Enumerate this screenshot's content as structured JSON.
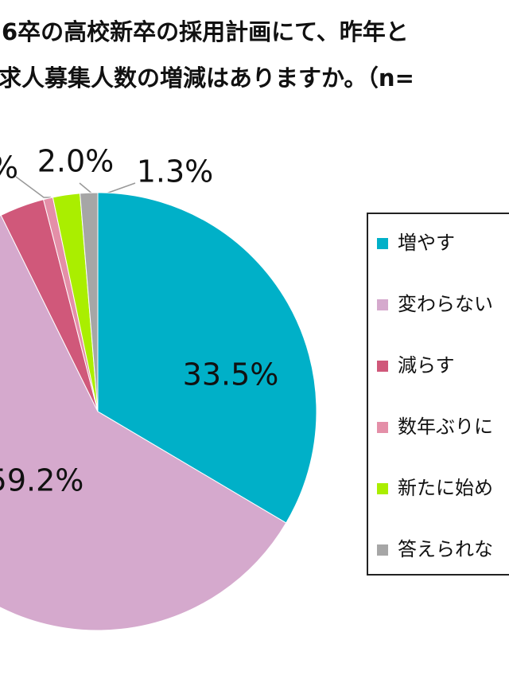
{
  "chart_data": {
    "type": "pie",
    "title_lines": [
      "6卒の高校新卒の採用計画にて、昨年と",
      "求人募集人数の増減はありますか。（n="
    ],
    "categories": [
      "増やす",
      "変わらない",
      "減らす",
      "数年ぶりに",
      "新たに始め",
      "答えられな"
    ],
    "values": [
      33.5,
      59.2,
      3.3,
      0.7,
      2.0,
      1.3
    ],
    "value_labels": [
      "33.5%",
      "59.2%",
      "%",
      null,
      "2.0%",
      "1.3%"
    ],
    "colors": [
      "#00b0c8",
      "#d5a9cd",
      "#d0587a",
      "#e48fa8",
      "#aaee00",
      "#a6a6a6"
    ],
    "legend": "right"
  }
}
